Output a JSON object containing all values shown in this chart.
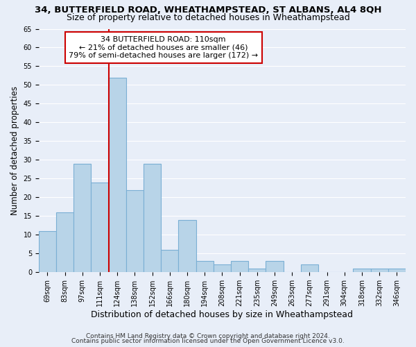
{
  "title": "34, BUTTERFIELD ROAD, WHEATHAMPSTEAD, ST ALBANS, AL4 8QH",
  "subtitle": "Size of property relative to detached houses in Wheathampstead",
  "xlabel": "Distribution of detached houses by size in Wheathampstead",
  "ylabel": "Number of detached properties",
  "categories": [
    "69sqm",
    "83sqm",
    "97sqm",
    "111sqm",
    "124sqm",
    "138sqm",
    "152sqm",
    "166sqm",
    "180sqm",
    "194sqm",
    "208sqm",
    "221sqm",
    "235sqm",
    "249sqm",
    "263sqm",
    "277sqm",
    "291sqm",
    "304sqm",
    "318sqm",
    "332sqm",
    "346sqm"
  ],
  "values": [
    11,
    16,
    29,
    24,
    52,
    22,
    29,
    6,
    14,
    3,
    2,
    3,
    1,
    3,
    0,
    2,
    0,
    0,
    1,
    1,
    1
  ],
  "bar_color": "#b8d4e8",
  "bar_edge_color": "#7aafd4",
  "background_color": "#e8eef8",
  "grid_color": "#ffffff",
  "vline_x": 3.5,
  "vline_color": "#cc0000",
  "annotation_text": "34 BUTTERFIELD ROAD: 110sqm\n← 21% of detached houses are smaller (46)\n79% of semi-detached houses are larger (172) →",
  "annotation_box_color": "#ffffff",
  "annotation_box_edge": "#cc0000",
  "ylim": [
    0,
    65
  ],
  "yticks": [
    0,
    5,
    10,
    15,
    20,
    25,
    30,
    35,
    40,
    45,
    50,
    55,
    60,
    65
  ],
  "footer1": "Contains HM Land Registry data © Crown copyright and database right 2024.",
  "footer2": "Contains public sector information licensed under the Open Government Licence v3.0.",
  "title_fontsize": 9.5,
  "subtitle_fontsize": 9,
  "tick_fontsize": 7,
  "ylabel_fontsize": 8.5,
  "xlabel_fontsize": 9,
  "annotation_fontsize": 8
}
